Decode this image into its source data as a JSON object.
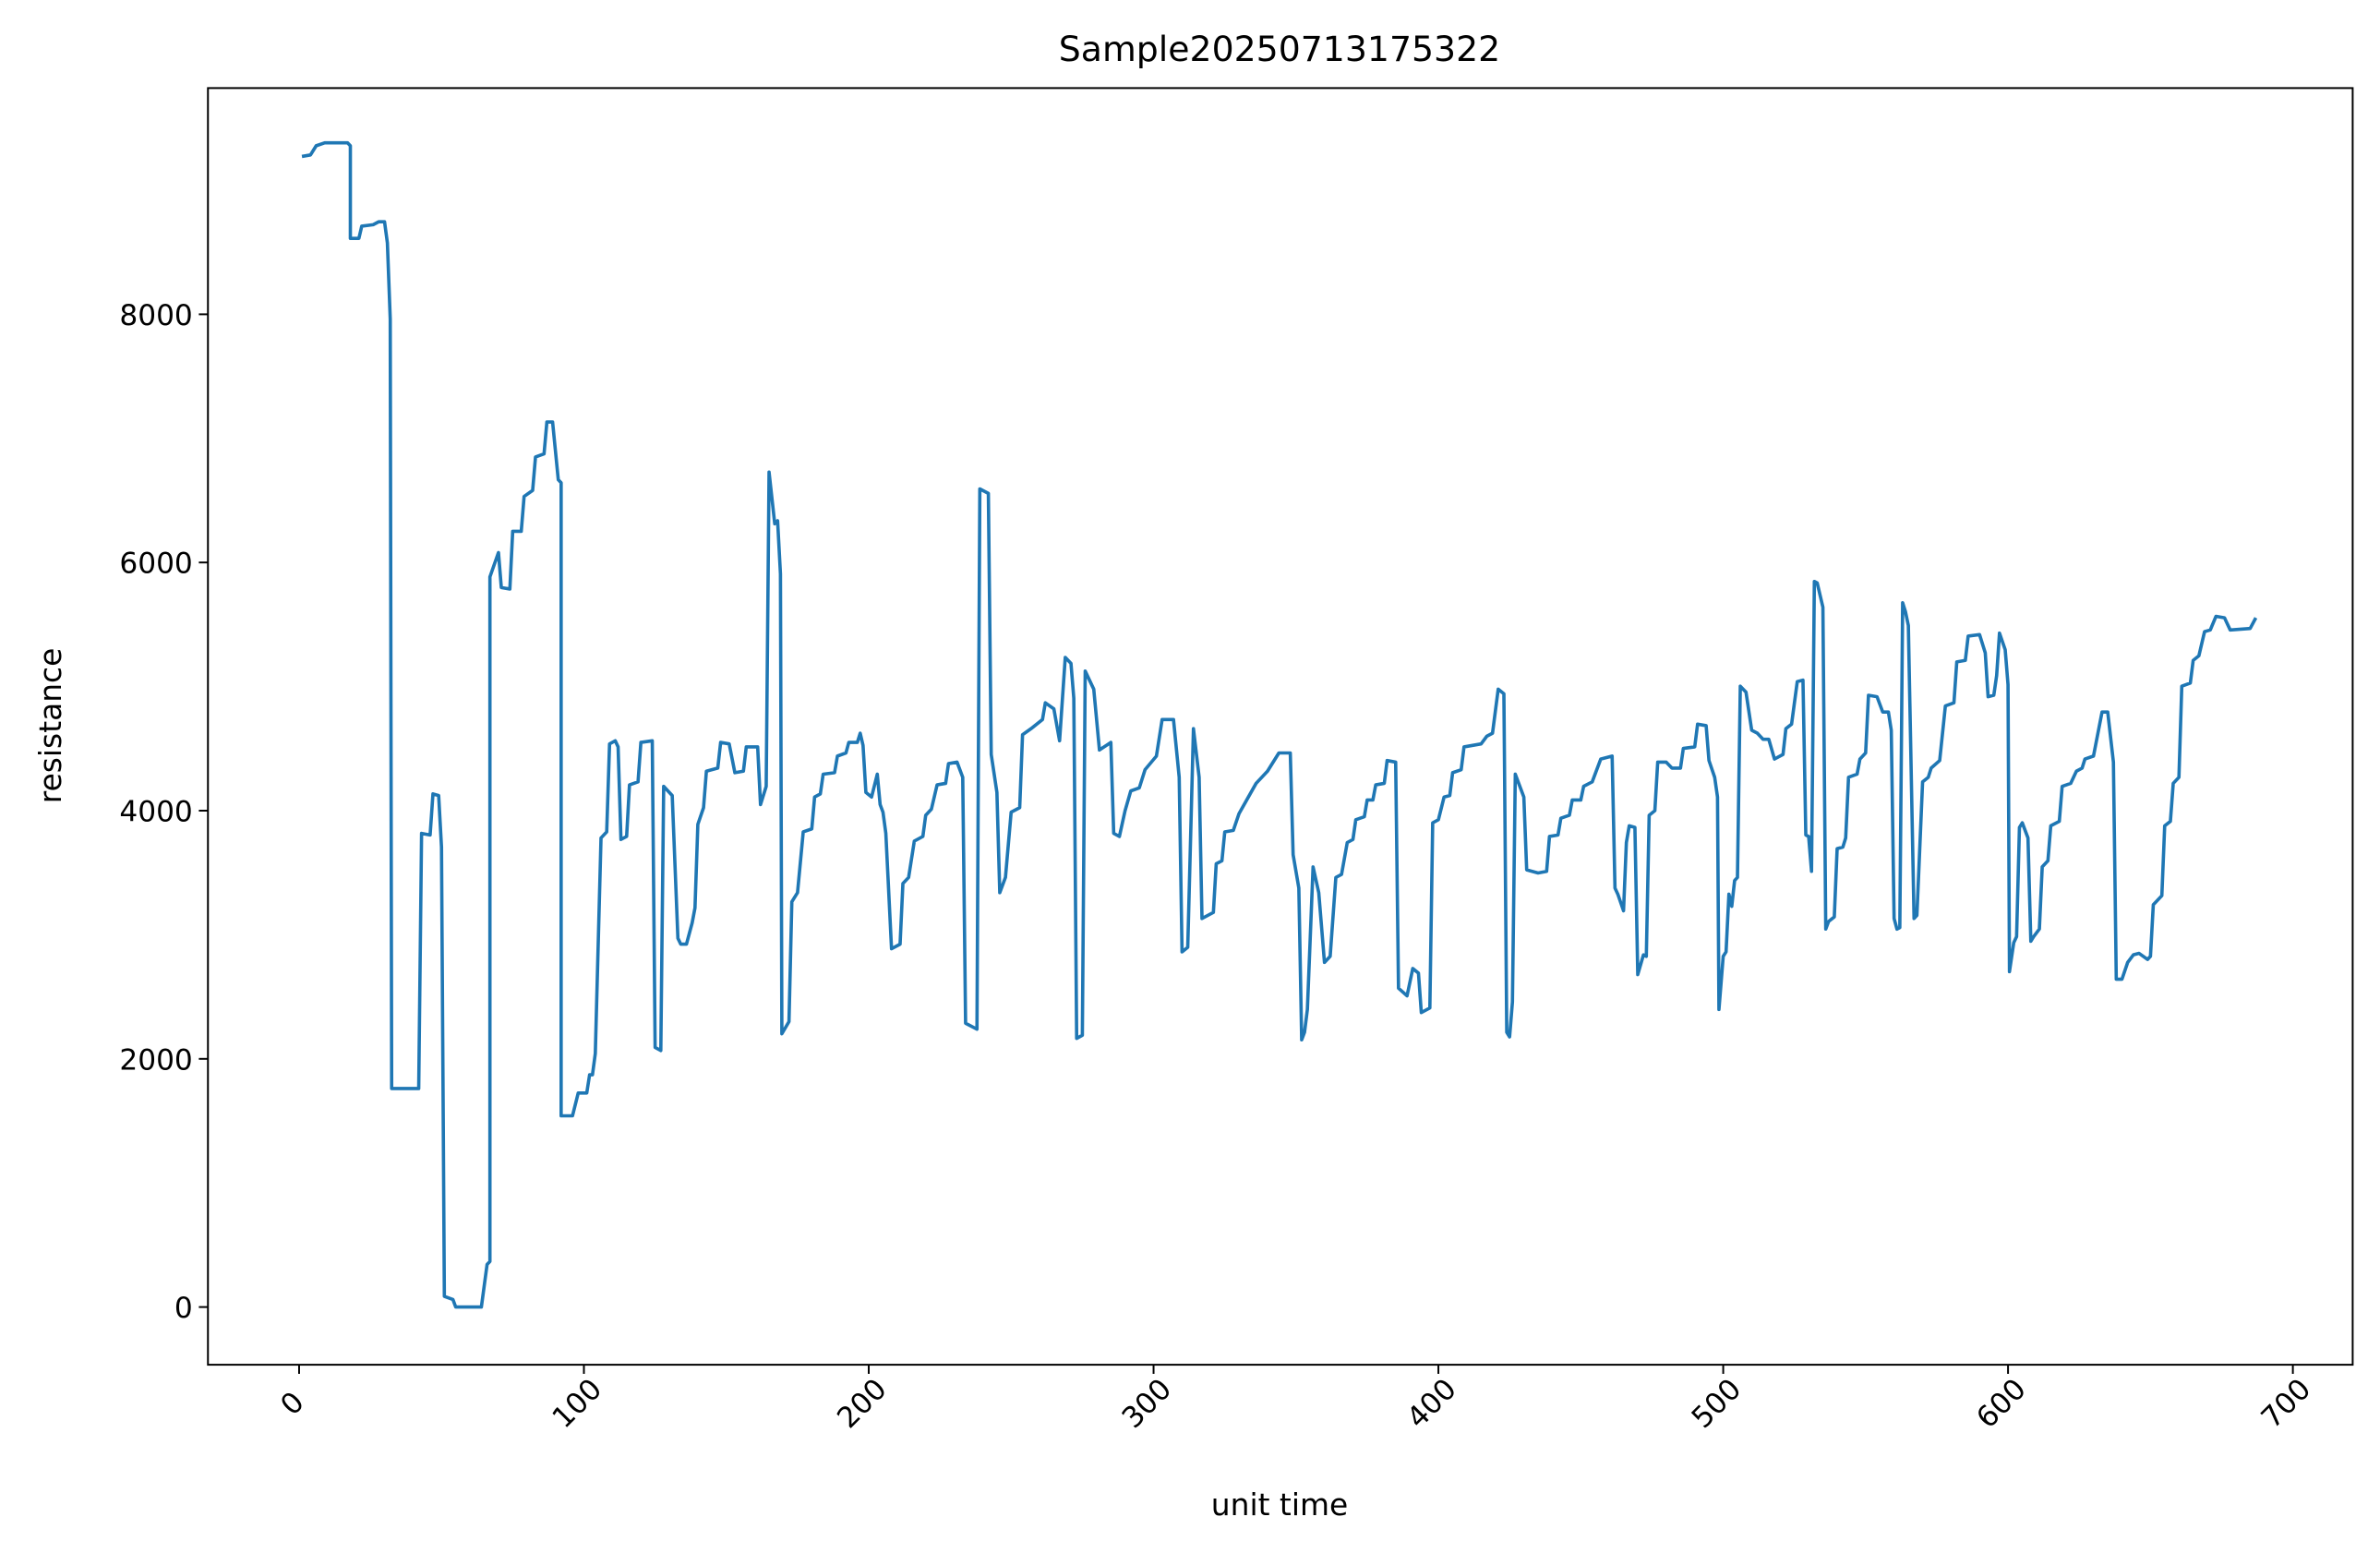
{
  "chart_data": {
    "type": "line",
    "title": "Sample20250713175322",
    "x_label": "unit time",
    "y_label": "resistance",
    "color": "#1f77b4",
    "xlim": [
      -32,
      721
    ],
    "ylim": [
      -465,
      9823
    ],
    "xticks": [
      0,
      100,
      200,
      300,
      400,
      500,
      600,
      700
    ],
    "yticks": [
      0,
      2000,
      4000,
      6000,
      8000
    ],
    "x": [
      1,
      4,
      6,
      9,
      17,
      18,
      18,
      21,
      22,
      26,
      28,
      30,
      31,
      32,
      32.5,
      42,
      43,
      46,
      47,
      49,
      50,
      51,
      54,
      55,
      64,
      66,
      67,
      67,
      70,
      71,
      74,
      75,
      78,
      79,
      82,
      83,
      86,
      87,
      89,
      91,
      92,
      92,
      96,
      98,
      101,
      102,
      103,
      104,
      106,
      108,
      109,
      111,
      112,
      113,
      115,
      116,
      119,
      120,
      124,
      125,
      127,
      128,
      131,
      133,
      134,
      136,
      138,
      139,
      140,
      142,
      143,
      147,
      148,
      151,
      153,
      156,
      157,
      161,
      162,
      164,
      165,
      167,
      168,
      169,
      169.5,
      172,
      173,
      175,
      177,
      180,
      181,
      183,
      184,
      188,
      189,
      192,
      193,
      196,
      197,
      198,
      199,
      201,
      203,
      204,
      205,
      206,
      208,
      211,
      212,
      214,
      216,
      219,
      220,
      222,
      224,
      227,
      228,
      231,
      233,
      234,
      238,
      239,
      242,
      243,
      245,
      246,
      248,
      250,
      253,
      254,
      257,
      261,
      262,
      265,
      267,
      269,
      271,
      272,
      273,
      275,
      276,
      279,
      281,
      285,
      286,
      288,
      290,
      292,
      295,
      297,
      301,
      303,
      307,
      309,
      310,
      312,
      314,
      316,
      317,
      321,
      322,
      324,
      325,
      328,
      330,
      333,
      336,
      340,
      344,
      348,
      349,
      351,
      352,
      353,
      354,
      356,
      358,
      360,
      362,
      364,
      366,
      368,
      370,
      371,
      374,
      375,
      377,
      378,
      381,
      382,
      385,
      386,
      389,
      391,
      393,
      394,
      397,
      398,
      400,
      402,
      404,
      405,
      408,
      409,
      415,
      417,
      419,
      421,
      423,
      424,
      425,
      426,
      427,
      430,
      431,
      435,
      438,
      439,
      442,
      443,
      446,
      447,
      450,
      451,
      454,
      457,
      461,
      462,
      463,
      465,
      466,
      467,
      469,
      470,
      472,
      473,
      474,
      476,
      477,
      480,
      482,
      485,
      486,
      490,
      491,
      494,
      495,
      497,
      498,
      498.5,
      500,
      501,
      502,
      503,
      504,
      505,
      506,
      508,
      510,
      512,
      514,
      516,
      518,
      521,
      522,
      524,
      526,
      528,
      529,
      530,
      531,
      532,
      533,
      535,
      536,
      537,
      539,
      540,
      542,
      543,
      544,
      547,
      548,
      550,
      551,
      554,
      556,
      558,
      559,
      560,
      561,
      562,
      563,
      564,
      565,
      567,
      568,
      570,
      572,
      573,
      576,
      578,
      581,
      582,
      585,
      586,
      590,
      592,
      593,
      595,
      596,
      597,
      599,
      600,
      600.5,
      602,
      603,
      604,
      605,
      607,
      608,
      609,
      611,
      612,
      614,
      615,
      618,
      619,
      622,
      624,
      626,
      627,
      630,
      633,
      635,
      637,
      638,
      640,
      642,
      644,
      646,
      649,
      650,
      651,
      654,
      655,
      657,
      658,
      660,
      661,
      664,
      665,
      667,
      669,
      671,
      673,
      676,
      678,
      685,
      687
    ],
    "values": [
      9272,
      9284,
      9358,
      9382,
      9382,
      9358,
      8612,
      8612,
      8710,
      8722,
      8746,
      8746,
      8575,
      7963,
      1761,
      1761,
      3817,
      3804,
      4135,
      4122,
      3706,
      86,
      61,
      0,
      0,
      343,
      367,
      5884,
      6080,
      5798,
      5786,
      6251,
      6251,
      6532,
      6581,
      6850,
      6875,
      7132,
      7132,
      6667,
      6642,
      1541,
      1541,
      1725,
      1725,
      1872,
      1872,
      2043,
      3780,
      3829,
      4538,
      4563,
      4514,
      3768,
      3792,
      4208,
      4232,
      4550,
      4563,
      2092,
      2067,
      4196,
      4122,
      2972,
      2924,
      2924,
      3095,
      3217,
      3890,
      4024,
      4318,
      4343,
      4550,
      4538,
      4306,
      4318,
      4514,
      4514,
      4049,
      4196,
      6728,
      6312,
      6336,
      5908,
      2202,
      2300,
      3266,
      3339,
      3829,
      3853,
      4110,
      4135,
      4294,
      4306,
      4440,
      4465,
      4550,
      4550,
      4624,
      4526,
      4147,
      4110,
      4294,
      4049,
      3988,
      3817,
      2887,
      2924,
      3413,
      3462,
      3755,
      3792,
      3963,
      4012,
      4208,
      4220,
      4379,
      4391,
      4269,
      2287,
      2239,
      6593,
      6557,
      4453,
      4147,
      3339,
      3462,
      3988,
      4024,
      4612,
      4661,
      4734,
      4869,
      4820,
      4563,
      5235,
      5187,
      4906,
      2165,
      2190,
      5125,
      4979,
      4489,
      4550,
      3817,
      3792,
      4000,
      4159,
      4184,
      4330,
      4440,
      4734,
      4734,
      4269,
      2862,
      2899,
      4661,
      4269,
      3131,
      3180,
      3572,
      3596,
      3829,
      3841,
      3976,
      4098,
      4220,
      4318,
      4465,
      4465,
      3645,
      3376,
      2153,
      2214,
      2398,
      3547,
      3339,
      2777,
      2826,
      3462,
      3486,
      3743,
      3768,
      3927,
      3951,
      4086,
      4086,
      4208,
      4220,
      4404,
      4391,
      2569,
      2508,
      2728,
      2691,
      2373,
      2410,
      3902,
      3927,
      4110,
      4122,
      4306,
      4330,
      4514,
      4538,
      4600,
      4624,
      4979,
      4942,
      2214,
      2177,
      2459,
      4294,
      4110,
      3523,
      3498,
      3511,
      3792,
      3804,
      3939,
      3963,
      4086,
      4086,
      4196,
      4232,
      4416,
      4440,
      3376,
      3327,
      3193,
      3743,
      3878,
      3865,
      2679,
      2838,
      2826,
      3963,
      4000,
      4391,
      4391,
      4343,
      4343,
      4502,
      4514,
      4697,
      4685,
      4404,
      4269,
      4110,
      2398,
      2826,
      2862,
      3327,
      3229,
      3437,
      3462,
      5003,
      4955,
      4648,
      4624,
      4575,
      4575,
      4416,
      4453,
      4661,
      4697,
      5040,
      5052,
      3804,
      3792,
      3511,
      5847,
      5835,
      5639,
      3046,
      3107,
      3144,
      3694,
      3706,
      3780,
      4269,
      4294,
      4416,
      4465,
      4930,
      4918,
      4795,
      4795,
      4648,
      3131,
      3046,
      3058,
      5676,
      5602,
      5492,
      3131,
      3156,
      4232,
      4269,
      4343,
      4404,
      4844,
      4869,
      5199,
      5211,
      5407,
      5419,
      5272,
      4918,
      4930,
      5089,
      5431,
      5297,
      5015,
      2703,
      2936,
      2985,
      3865,
      3902,
      3780,
      2948,
      2985,
      3046,
      3547,
      3596,
      3878,
      3914,
      4196,
      4220,
      4318,
      4343,
      4416,
      4440,
      4795,
      4795,
      4391,
      2642,
      2642,
      2777,
      2838,
      2850,
      2801,
      2826,
      3242,
      3315,
      3878,
      3914,
      4220,
      4269,
      5003,
      5028,
      5211,
      5248,
      5443,
      5456,
      5566,
      5554,
      5456,
      5468,
      5554
    ]
  }
}
